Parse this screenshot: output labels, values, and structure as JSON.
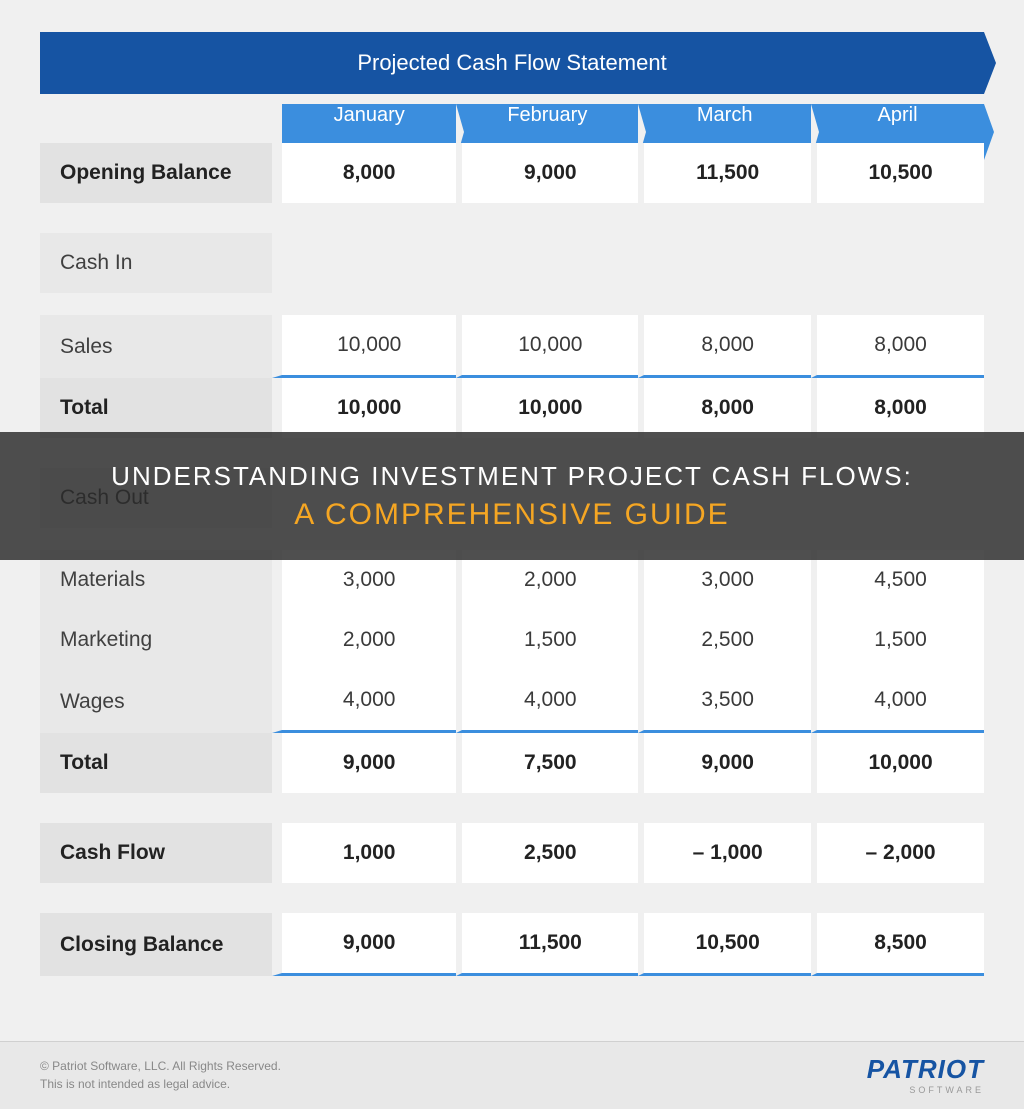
{
  "title": "Projected Cash Flow Statement",
  "months": [
    "January",
    "February",
    "March",
    "April"
  ],
  "rows": {
    "opening_balance": {
      "label": "Opening Balance",
      "values": [
        "8,000",
        "9,000",
        "11,500",
        "10,500"
      ]
    },
    "cash_in_header": {
      "label": "Cash In"
    },
    "sales": {
      "label": "Sales",
      "values": [
        "10,000",
        "10,000",
        "8,000",
        "8,000"
      ]
    },
    "cash_in_total": {
      "label": "Total",
      "values": [
        "10,000",
        "10,000",
        "8,000",
        "8,000"
      ]
    },
    "cash_out_header": {
      "label": "Cash Out"
    },
    "materials": {
      "label": "Materials",
      "values": [
        "3,000",
        "2,000",
        "3,000",
        "4,500"
      ]
    },
    "marketing": {
      "label": "Marketing",
      "values": [
        "2,000",
        "1,500",
        "2,500",
        "1,500"
      ]
    },
    "wages": {
      "label": "Wages",
      "values": [
        "4,000",
        "4,000",
        "3,500",
        "4,000"
      ]
    },
    "cash_out_total": {
      "label": "Total",
      "values": [
        "9,000",
        "7,500",
        "9,000",
        "10,000"
      ]
    },
    "cash_flow": {
      "label": "Cash Flow",
      "values": [
        "1,000",
        "2,500",
        "– 1,000",
        "– 2,000"
      ]
    },
    "closing_balance": {
      "label": "Closing Balance",
      "values": [
        "9,000",
        "11,500",
        "10,500",
        "8,500"
      ]
    }
  },
  "overlay": {
    "line1": "UNDERSTANDING INVESTMENT PROJECT CASH FLOWS:",
    "line2": "A COMPREHENSIVE GUIDE"
  },
  "footer": {
    "copyright": "© Patriot Software, LLC. All Rights Reserved.",
    "disclaimer": "This is not intended as legal advice.",
    "logo_text": "PATRIOT",
    "logo_sub": "SOFTWARE"
  },
  "colors": {
    "title_bg": "#1654a3",
    "month_bg": "#3b8ede",
    "page_bg": "#f0f0f0",
    "cell_bg": "#ffffff",
    "label_bold_bg": "#e2e2e2",
    "label_light_bg": "#e8e8e8",
    "accent_underline": "#3b8ede",
    "overlay_bg": "rgba(40,40,40,0.82)",
    "overlay_text1": "#ffffff",
    "overlay_text2": "#f5a623"
  }
}
